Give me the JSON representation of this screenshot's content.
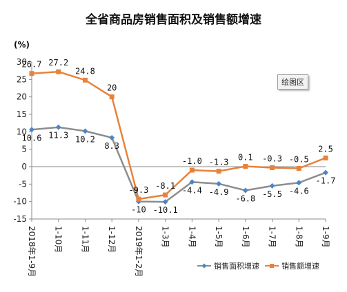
{
  "chart_data": {
    "type": "line",
    "title": "全省商品房销售面积及销售额增速",
    "ylabel": "(%)",
    "xlabel": "",
    "ylim": [
      -15,
      30
    ],
    "yticks": [
      -15,
      -10,
      -5,
      0,
      5,
      10,
      15,
      20,
      25,
      30
    ],
    "grid": false,
    "legend_position": "bottom-right",
    "categories": [
      "2018年1-9月",
      "1-10月",
      "1-11月",
      "1-12月",
      "2019年1-2月",
      "1-3月",
      "1-4月",
      "1-5月",
      "1-6月",
      "1-7月",
      "1-8月",
      "1-9月"
    ],
    "series": [
      {
        "name": "销售面积增速",
        "color": "#8c8c8c",
        "marker": "diamond",
        "marker_color": "#4a86c8",
        "values": [
          10.6,
          11.3,
          10.2,
          8.3,
          -10,
          -10.1,
          -4.4,
          -4.9,
          -6.8,
          -5.5,
          -4.6,
          -1.7
        ],
        "labels": [
          "10.6",
          "11.3",
          "10.2",
          "8.3",
          "-10",
          "-10.1",
          "-4.4",
          "-4.9",
          "-6.8",
          "-5.5",
          "-4.6",
          "-1.7"
        ]
      },
      {
        "name": "销售额增速",
        "color": "#e8823a",
        "marker": "square",
        "marker_color": "#e8823a",
        "values": [
          26.7,
          27.2,
          24.8,
          20,
          -9.3,
          -8.1,
          -1.0,
          -1.3,
          0.1,
          -0.3,
          -0.5,
          2.5
        ],
        "labels": [
          "26.7",
          "27.2",
          "24.8",
          "20",
          "-9.3",
          "-8.1",
          "-1.0",
          "-1.3",
          "0.1",
          "-0.3",
          "-0.5",
          "2.5"
        ]
      }
    ]
  },
  "badge": "绘图区"
}
